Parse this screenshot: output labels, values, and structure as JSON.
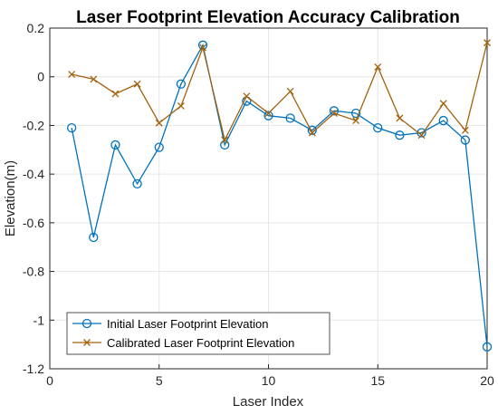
{
  "chart_data": {
    "type": "line",
    "title": "Laser Footprint Elevation Accuracy Calibration",
    "xlabel": "Laser Index",
    "ylabel": "Elevation(m)",
    "xlim": [
      0,
      20
    ],
    "ylim": [
      -1.2,
      0.2
    ],
    "x_ticks": [
      0,
      5,
      10,
      15,
      20
    ],
    "x_tick_labels": [
      "0",
      "5",
      "10",
      "15",
      "20"
    ],
    "y_ticks": [
      0.2,
      0,
      -0.2,
      -0.4,
      -0.6,
      -0.8,
      -1,
      -1.2
    ],
    "y_tick_labels": [
      "0.2",
      "0",
      "-0.2",
      "-0.4",
      "-0.6",
      "-0.8",
      "-1",
      "-1.2"
    ],
    "grid": true,
    "legend_position": "bottom-left",
    "x": [
      1,
      2,
      3,
      4,
      5,
      6,
      7,
      8,
      9,
      10,
      11,
      12,
      13,
      14,
      15,
      16,
      17,
      18,
      19,
      20
    ],
    "series": [
      {
        "name": "Initial Laser Footprint Elevation",
        "color": "#0072BD",
        "marker": "circle",
        "values": [
          -0.21,
          -0.66,
          -0.28,
          -0.44,
          -0.29,
          -0.03,
          0.13,
          -0.28,
          -0.1,
          -0.16,
          -0.17,
          -0.22,
          -0.14,
          -0.15,
          -0.21,
          -0.24,
          -0.23,
          -0.18,
          -0.26,
          -1.11
        ]
      },
      {
        "name": "Calibrated Laser Footprint Elevation",
        "color": "#A2620F",
        "marker": "x",
        "values": [
          0.01,
          -0.01,
          -0.07,
          -0.03,
          -0.19,
          -0.12,
          0.12,
          -0.26,
          -0.08,
          -0.15,
          -0.06,
          -0.23,
          -0.15,
          -0.18,
          0.04,
          -0.17,
          -0.24,
          -0.11,
          -0.22,
          0.14
        ]
      }
    ]
  }
}
